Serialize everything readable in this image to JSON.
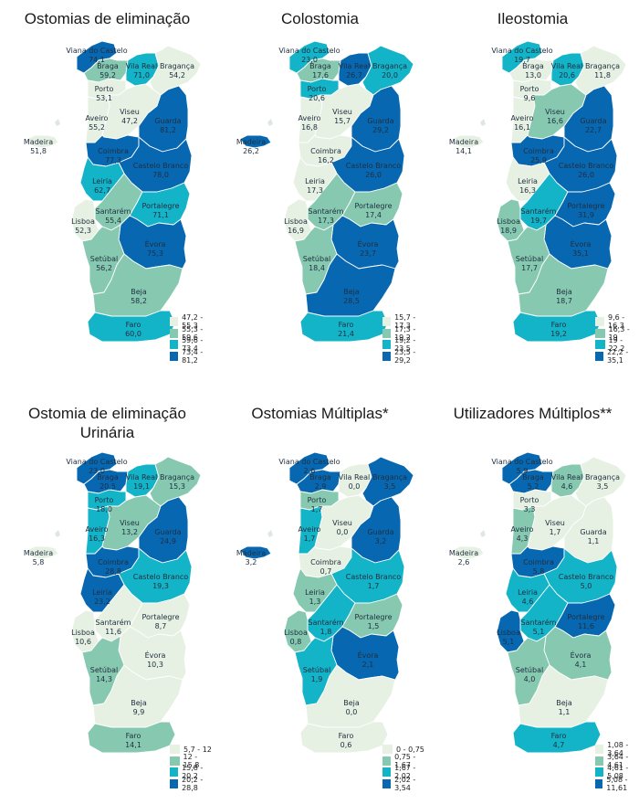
{
  "palette": [
    "#e6f0e3",
    "#86c9b0",
    "#13b3c8",
    "#0867b1"
  ],
  "districts": [
    "Viana do Castelo",
    "Braga",
    "Vila Real",
    "Bragança",
    "Porto",
    "Aveiro",
    "Viseu",
    "Guarda",
    "Coimbra",
    "Castelo Branco",
    "Leiria",
    "Santarém",
    "Portalegre",
    "Lisboa",
    "Évora",
    "Setúbal",
    "Beja",
    "Faro",
    "Madeira"
  ],
  "panels": [
    {
      "title_lines": [
        "Ostomias de eliminação"
      ],
      "legend": [
        "47,2 - 55,3",
        "55,3 - 59,6",
        "59,6 - 73,4",
        "73,4 - 81,2"
      ],
      "values": {
        "Viana do Castelo": "74,1",
        "Braga": "59,2",
        "Vila Real": "71,0",
        "Bragança": "54,2",
        "Porto": "53,1",
        "Aveiro": "55,2",
        "Viseu": "47,2",
        "Guarda": "81,2",
        "Coimbra": "77,3",
        "Castelo Branco": "78,0",
        "Leiria": "62,7",
        "Santarém": "55,4",
        "Portalegre": "71,1",
        "Lisboa": "52,3",
        "Évora": "75,3",
        "Setúbal": "56,2",
        "Beja": "58,2",
        "Faro": "60,0",
        "Madeira": "51,8"
      },
      "classes": {
        "Viana do Castelo": 3,
        "Braga": 1,
        "Vila Real": 2,
        "Bragança": 0,
        "Porto": 0,
        "Aveiro": 0,
        "Viseu": 0,
        "Guarda": 3,
        "Coimbra": 3,
        "Castelo Branco": 3,
        "Leiria": 2,
        "Santarém": 1,
        "Portalegre": 2,
        "Lisboa": 0,
        "Évora": 3,
        "Setúbal": 1,
        "Beja": 1,
        "Faro": 2,
        "Madeira": 0
      }
    },
    {
      "title_lines": [
        "Colostomia"
      ],
      "legend": [
        "15,7 - 17,3",
        "17,3 - 19,2",
        "19,2 - 23,5",
        "23,5 - 29,2"
      ],
      "values": {
        "Viana do Castelo": "23,0",
        "Braga": "17,6",
        "Vila Real": "26,7",
        "Bragança": "20,0",
        "Porto": "20,6",
        "Aveiro": "16,8",
        "Viseu": "15,7",
        "Guarda": "29,2",
        "Coimbra": "16,2",
        "Castelo Branco": "26,0",
        "Leiria": "17,3",
        "Santarém": "17,3",
        "Portalegre": "17,4",
        "Lisboa": "16,9",
        "Évora": "23,7",
        "Setúbal": "18,4",
        "Beja": "28,5",
        "Faro": "21,4",
        "Madeira": "26,2"
      },
      "classes": {
        "Viana do Castelo": 2,
        "Braga": 1,
        "Vila Real": 3,
        "Bragança": 2,
        "Porto": 2,
        "Aveiro": 0,
        "Viseu": 0,
        "Guarda": 3,
        "Coimbra": 0,
        "Castelo Branco": 3,
        "Leiria": 0,
        "Santarém": 1,
        "Portalegre": 1,
        "Lisboa": 0,
        "Évora": 3,
        "Setúbal": 1,
        "Beja": 3,
        "Faro": 2,
        "Madeira": 3
      }
    },
    {
      "title_lines": [
        "Ileostomia"
      ],
      "legend": [
        "9,6 - 16,3",
        "16,3 - 19",
        "19 - 22,2",
        "22,2 - 35,1"
      ],
      "values": {
        "Viana do Castelo": "19,7",
        "Braga": "13,0",
        "Vila Real": "20,6",
        "Bragança": "11,8",
        "Porto": "9,6",
        "Aveiro": "16,1",
        "Viseu": "16,6",
        "Guarda": "22,7",
        "Coimbra": "25,9",
        "Castelo Branco": "26,0",
        "Leiria": "16,3",
        "Santarém": "19,7",
        "Portalegre": "31,9",
        "Lisboa": "18,9",
        "Évora": "35,1",
        "Setúbal": "17,7",
        "Beja": "18,7",
        "Faro": "19,2",
        "Madeira": "14,1"
      },
      "classes": {
        "Viana do Castelo": 2,
        "Braga": 0,
        "Vila Real": 2,
        "Bragança": 0,
        "Porto": 0,
        "Aveiro": 0,
        "Viseu": 1,
        "Guarda": 3,
        "Coimbra": 3,
        "Castelo Branco": 3,
        "Leiria": 0,
        "Santarém": 2,
        "Portalegre": 3,
        "Lisboa": 1,
        "Évora": 3,
        "Setúbal": 1,
        "Beja": 1,
        "Faro": 2,
        "Madeira": 0
      }
    },
    {
      "title_lines": [
        "Ostomia de eliminação",
        "Urinária"
      ],
      "legend": [
        "5,7 - 12",
        "12 - 15,8",
        "15,8 - 20,2",
        "20,2 - 28,8"
      ],
      "values": {
        "Viana do Castelo": "23,0",
        "Braga": "20,5",
        "Vila Real": "19,1",
        "Bragança": "15,3",
        "Porto": "18,0",
        "Aveiro": "16,3",
        "Viseu": "13,2",
        "Guarda": "24,9",
        "Coimbra": "28,8",
        "Castelo Branco": "19,3",
        "Leiria": "23,2",
        "Santarém": "11,6",
        "Portalegre": "8,7",
        "Lisboa": "10,6",
        "Évora": "10,3",
        "Setúbal": "14,3",
        "Beja": "9,9",
        "Faro": "14,1",
        "Madeira": "5,8"
      },
      "classes": {
        "Viana do Castelo": 3,
        "Braga": 3,
        "Vila Real": 2,
        "Bragança": 1,
        "Porto": 2,
        "Aveiro": 2,
        "Viseu": 1,
        "Guarda": 3,
        "Coimbra": 3,
        "Castelo Branco": 2,
        "Leiria": 3,
        "Santarém": 0,
        "Portalegre": 0,
        "Lisboa": 0,
        "Évora": 0,
        "Setúbal": 1,
        "Beja": 0,
        "Faro": 1,
        "Madeira": 0
      }
    },
    {
      "title_lines": [
        "Ostomias Múltiplas*"
      ],
      "legend": [
        "0 - 0,75",
        "0,75 - 1,67",
        "1,67 - 2,02",
        "2,02 - 3,54"
      ],
      "values": {
        "Viana do Castelo": "2,6",
        "Braga": "2,9",
        "Vila Real": "0,0",
        "Bragança": "3,5",
        "Porto": "1,7",
        "Aveiro": "1,7",
        "Viseu": "0,0",
        "Guarda": "3,2",
        "Coimbra": "0,7",
        "Castelo Branco": "1,7",
        "Leiria": "1,3",
        "Santarém": "1,8",
        "Portalegre": "1,5",
        "Lisboa": "0,8",
        "Évora": "2,1",
        "Setúbal": "1,9",
        "Beja": "0,0",
        "Faro": "0,6",
        "Madeira": "3,2"
      },
      "classes": {
        "Viana do Castelo": 3,
        "Braga": 3,
        "Vila Real": 0,
        "Bragança": 3,
        "Porto": 1,
        "Aveiro": 2,
        "Viseu": 0,
        "Guarda": 3,
        "Coimbra": 0,
        "Castelo Branco": 2,
        "Leiria": 1,
        "Santarém": 2,
        "Portalegre": 1,
        "Lisboa": 1,
        "Évora": 3,
        "Setúbal": 2,
        "Beja": 0,
        "Faro": 0,
        "Madeira": 3
      }
    },
    {
      "title_lines": [
        "Utilizadores Múltiplos**"
      ],
      "legend": [
        "1,08 - 3,64",
        "3,64 - 4,61",
        "4,61 - 5,08",
        "5,08 - 11,61"
      ],
      "values": {
        "Viana do Castelo": "5,9",
        "Braga": "5,2",
        "Vila Real": "4,6",
        "Bragança": "3,5",
        "Porto": "3,3",
        "Aveiro": "4,3",
        "Viseu": "1,7",
        "Guarda": "1,1",
        "Coimbra": "5,8",
        "Castelo Branco": "5,0",
        "Leiria": "4,6",
        "Santarém": "5,1",
        "Portalegre": "11,6",
        "Lisboa": "5,1",
        "Évora": "4,1",
        "Setúbal": "4,0",
        "Beja": "1,1",
        "Faro": "4,7",
        "Madeira": "2,6"
      },
      "classes": {
        "Viana do Castelo": 3,
        "Braga": 3,
        "Vila Real": 1,
        "Bragança": 0,
        "Porto": 0,
        "Aveiro": 1,
        "Viseu": 0,
        "Guarda": 0,
        "Coimbra": 3,
        "Castelo Branco": 2,
        "Leiria": 2,
        "Santarém": 2,
        "Portalegre": 3,
        "Lisboa": 3,
        "Évora": 1,
        "Setúbal": 1,
        "Beja": 0,
        "Faro": 2,
        "Madeira": 0
      }
    }
  ]
}
